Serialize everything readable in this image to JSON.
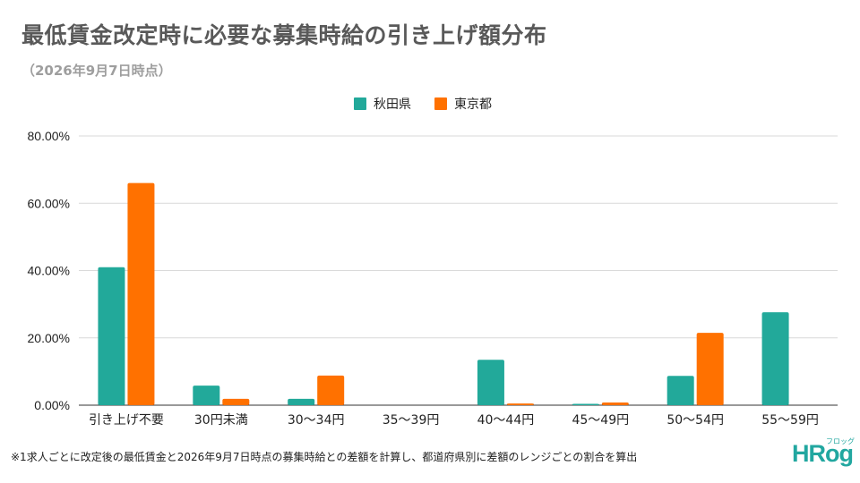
{
  "title": "最低賃金改定時に必要な募集時給の引き上げ額分布",
  "subtitle": "（2026年9月7日時点）",
  "footnote": "※1求人ごとに改定後の最低賃金と2026年9月7日時点の募集時給との差額を計算し、都道府県別に差額のレンジごとの割合を算出",
  "logo": {
    "text": "HRog",
    "kana": "フロッグ"
  },
  "colors": {
    "series1": "#22a99a",
    "series2": "#ff7100",
    "grid": "#d9d9d9",
    "axis": "#333333"
  },
  "chart_data": {
    "type": "bar",
    "categories": [
      "引き上げ不要",
      "30円未満",
      "30〜34円",
      "35〜39円",
      "40〜44円",
      "45〜49円",
      "50〜54円",
      "55〜59円"
    ],
    "series": [
      {
        "name": "秋田県",
        "values": [
          41.0,
          5.8,
          1.9,
          0.0,
          13.5,
          0.4,
          8.7,
          27.6
        ]
      },
      {
        "name": "東京都",
        "values": [
          66.0,
          1.9,
          8.8,
          0.0,
          0.5,
          0.8,
          21.5,
          0.0
        ]
      }
    ],
    "ylim": [
      0,
      80
    ],
    "yticks": [
      "0.00%",
      "20.00%",
      "40.00%",
      "60.00%",
      "80.00%"
    ],
    "ytick_values": [
      0,
      20,
      40,
      60,
      80
    ],
    "legend_position": "top-center",
    "grid": true
  }
}
